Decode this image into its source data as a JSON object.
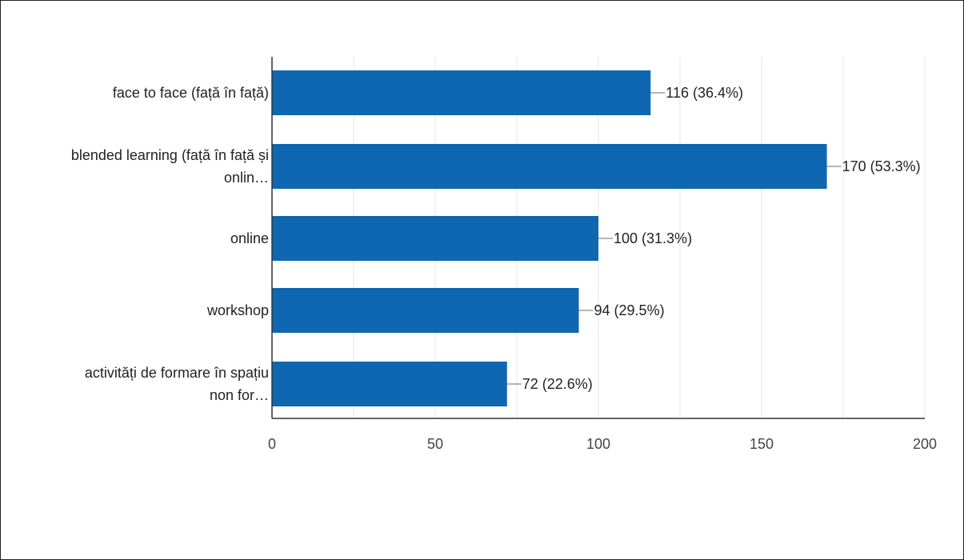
{
  "chart_data": {
    "type": "bar",
    "orientation": "horizontal",
    "categories": [
      [
        "face to face (față în față)"
      ],
      [
        "blended learning (față în față și",
        "onlin…"
      ],
      [
        "online"
      ],
      [
        "workshop"
      ],
      [
        "activități de formare în spațiu",
        "non for…"
      ]
    ],
    "values": [
      116,
      170,
      100,
      94,
      72
    ],
    "value_labels": [
      "116 (36.4%)",
      "170 (53.3%)",
      "100 (31.3%)",
      "94 (29.5%)",
      "72 (22.6%)"
    ],
    "xlim": [
      0,
      200
    ],
    "xticks": [
      0,
      50,
      100,
      150,
      200
    ],
    "grid": true,
    "title": "",
    "xlabel": "",
    "ylabel": "",
    "bar_color": "#0f67b1"
  }
}
